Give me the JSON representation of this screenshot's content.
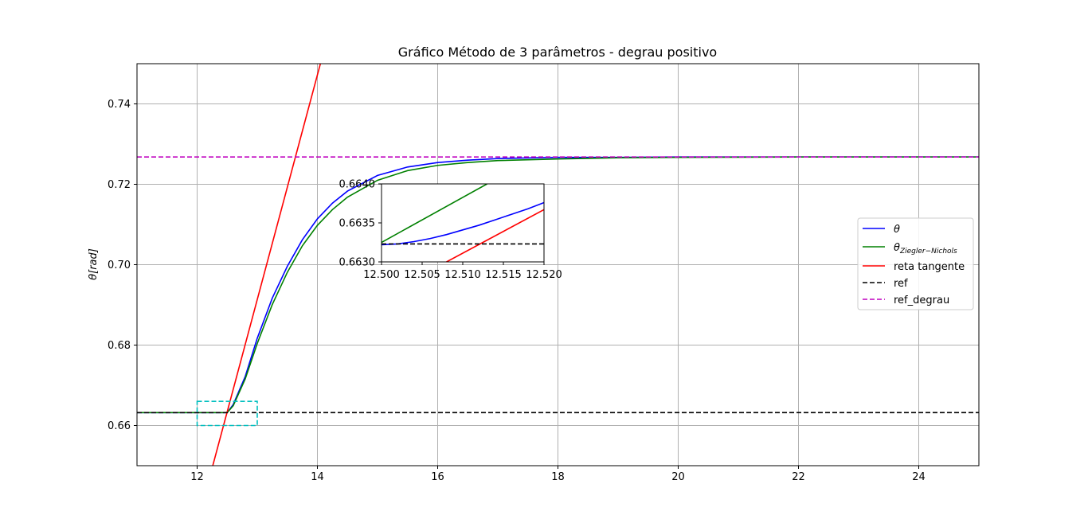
{
  "chart_data": {
    "type": "line",
    "title": "Gráfico Método de 3 parâmetros - degrau positivo",
    "ylabel": "θ[rad]",
    "xlabel": "",
    "xlim": [
      11.0,
      25.0
    ],
    "ylim": [
      0.65,
      0.75
    ],
    "xticks": [
      12,
      14,
      16,
      18,
      20,
      22,
      24
    ],
    "yticks": [
      0.66,
      0.68,
      0.7,
      0.72,
      0.74
    ],
    "xtick_labels": [
      "12",
      "14",
      "16",
      "18",
      "20",
      "22",
      "24"
    ],
    "ytick_labels": [
      "0.66",
      "0.68",
      "0.70",
      "0.72",
      "0.74"
    ],
    "grid": true,
    "legend_position": "center-right",
    "series": [
      {
        "name": "θ",
        "color": "#0000ff",
        "style": "solid",
        "x": [
          11.0,
          12.0,
          12.5,
          12.6,
          12.8,
          13.0,
          13.25,
          13.5,
          13.75,
          14.0,
          14.25,
          14.5,
          15.0,
          15.5,
          16.0,
          16.5,
          17.0,
          18.0,
          19.0,
          20.0,
          22.0,
          25.0
        ],
        "y": [
          0.6632,
          0.6632,
          0.6632,
          0.6652,
          0.6722,
          0.6817,
          0.6917,
          0.6996,
          0.7062,
          0.7114,
          0.7153,
          0.7183,
          0.7222,
          0.7243,
          0.7254,
          0.726,
          0.7264,
          0.7267,
          0.7267,
          0.7268,
          0.7268,
          0.7268
        ]
      },
      {
        "name": "θ_{Ziegler−Nichols}",
        "color": "#008000",
        "style": "solid",
        "x": [
          11.0,
          12.0,
          12.5,
          12.6,
          12.8,
          13.0,
          13.25,
          13.5,
          13.75,
          14.0,
          14.25,
          14.5,
          15.0,
          15.5,
          16.0,
          16.5,
          17.0,
          18.0,
          19.0,
          20.0,
          22.0,
          25.0
        ],
        "y": [
          0.6632,
          0.6632,
          0.6632,
          0.6649,
          0.6716,
          0.6804,
          0.6901,
          0.6981,
          0.7047,
          0.7098,
          0.7137,
          0.7168,
          0.721,
          0.7234,
          0.7247,
          0.7254,
          0.7259,
          0.7263,
          0.7266,
          0.7267,
          0.7268,
          0.7268
        ]
      },
      {
        "name": "reta tangente",
        "color": "#ff0000",
        "style": "solid",
        "x": [
          12.26,
          14.05
        ],
        "y": [
          0.65,
          0.75
        ]
      },
      {
        "name": "ref",
        "color": "#000000",
        "style": "dashed",
        "x": [
          11.0,
          25.0
        ],
        "y": [
          0.6632,
          0.6632
        ]
      },
      {
        "name": "ref_degrau",
        "color": "#bf00bf",
        "style": "dashed",
        "x": [
          11.0,
          25.0
        ],
        "y": [
          0.7268,
          0.7268
        ]
      }
    ],
    "zoom_box": {
      "color": "#00bfbf",
      "x": [
        12.0,
        13.0
      ],
      "y": [
        0.66,
        0.666
      ]
    },
    "inset": {
      "xlim": [
        12.5,
        12.52
      ],
      "ylim": [
        0.663,
        0.664
      ],
      "xticks": [
        12.5,
        12.505,
        12.51,
        12.515,
        12.52
      ],
      "yticks": [
        0.663,
        0.6635,
        0.664
      ],
      "xtick_labels": [
        "12.500",
        "12.505",
        "12.510",
        "12.515",
        "12.520"
      ],
      "ytick_labels": [
        "0.6630",
        "0.6635",
        "0.6640"
      ],
      "series": [
        {
          "name": "θ",
          "color": "#0000ff",
          "style": "solid",
          "x": [
            12.5,
            12.502,
            12.504,
            12.506,
            12.508,
            12.51,
            12.512,
            12.514,
            12.516,
            12.518,
            12.52
          ],
          "y": [
            0.66322,
            0.66323,
            0.66326,
            0.6633,
            0.66335,
            0.66341,
            0.66347,
            0.66354,
            0.66361,
            0.66368,
            0.66376
          ]
        },
        {
          "name": "θ_{Ziegler−Nichols}",
          "color": "#008000",
          "style": "solid",
          "x": [
            12.5,
            12.513
          ],
          "y": [
            0.66325,
            0.664
          ]
        },
        {
          "name": "reta tangente",
          "color": "#ff0000",
          "style": "solid",
          "x": [
            12.508,
            12.52
          ],
          "y": [
            0.663,
            0.66367
          ]
        },
        {
          "name": "ref",
          "color": "#000000",
          "style": "dashed",
          "x": [
            12.5,
            12.52
          ],
          "y": [
            0.66323,
            0.66323
          ]
        }
      ]
    }
  }
}
